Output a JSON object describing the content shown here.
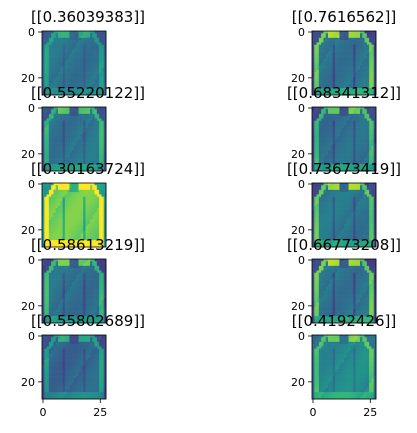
{
  "chart_data": {
    "type": "heatmap",
    "colormap": "viridis",
    "panel_layout": {
      "rows": 5,
      "cols": 2
    },
    "x_ticks": [
      "0",
      "25"
    ],
    "y_ticks": [
      "0",
      "20"
    ],
    "x_ticks_visible_on": "bottom-row",
    "data_range": [
      0,
      1
    ],
    "panels": [
      {
        "title": "[[0.36039383]]",
        "base": 0.3,
        "contrast": 0.35
      },
      {
        "title": "[[0.7616562]]",
        "base": 0.2,
        "contrast": 0.75
      },
      {
        "title": "[[0.55220122]]",
        "base": 0.25,
        "contrast": 0.55
      },
      {
        "title": "[[0.68341312]]",
        "base": 0.2,
        "contrast": 0.65
      },
      {
        "title": "[[0.30163724]]",
        "base": 0.55,
        "contrast": 0.9
      },
      {
        "title": "[[0.73673419]]",
        "base": 0.22,
        "contrast": 0.7
      },
      {
        "title": "[[0.58613219]]",
        "base": 0.22,
        "contrast": 0.6
      },
      {
        "title": "[[0.66773208]]",
        "base": 0.2,
        "contrast": 0.75
      },
      {
        "title": "[[0.55802689]]",
        "base": 0.22,
        "contrast": 0.45
      },
      {
        "title": "[[0.4192426]]",
        "base": 0.35,
        "contrast": 0.5
      }
    ]
  }
}
